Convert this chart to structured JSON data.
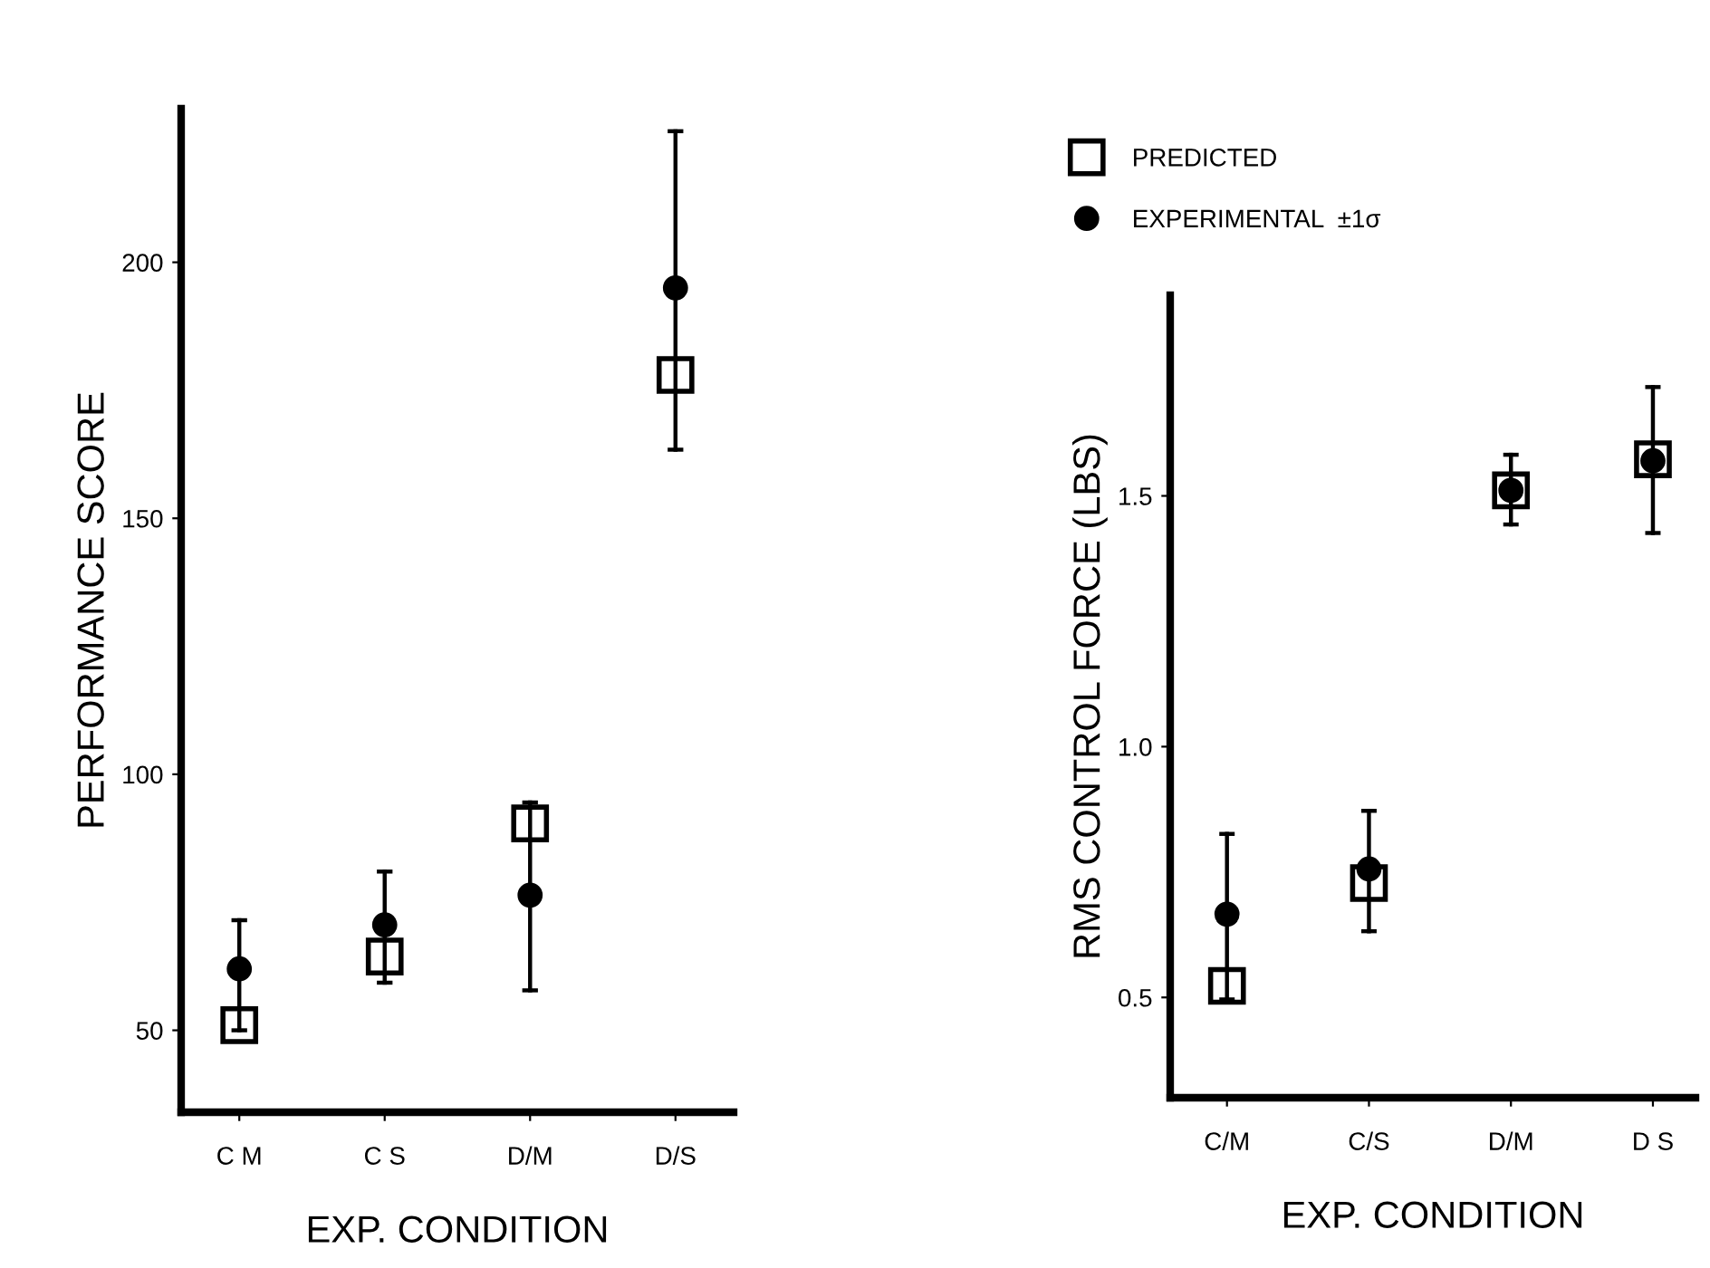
{
  "chart_data": [
    {
      "type": "scatter",
      "ylabel": "PERFORMANCE SCORE",
      "xlabel": "EXP. CONDITION",
      "categories": [
        "C M",
        "C S",
        "D/M",
        "D/S"
      ],
      "ylim": [
        34,
        230
      ],
      "yticks": [
        50,
        100,
        150,
        200
      ],
      "grid": false,
      "legend": false,
      "tick_labels": "xy",
      "series": [
        {
          "color": "#000000",
          "marker": "circle",
          "values": [
            62,
            70.6,
            76.4,
            195
          ],
          "errors": [
            [
              50,
              71.5
            ],
            [
              59.3,
              81
            ],
            [
              57.8,
              94.5
            ],
            [
              163.4,
              225.6
            ]
          ]
        },
        {
          "color": "#000000",
          "marker": "square",
          "values": [
            51,
            64.4,
            90.4,
            178
          ]
        }
      ]
    },
    {
      "type": "scatter",
      "ylabel": "RMS CONTROL FORCE (LBS)",
      "xlabel": "EXP. CONDITION",
      "categories": [
        "C/M",
        "C/S",
        "D/M",
        "D S"
      ],
      "ylim": [
        0.3,
        1.9
      ],
      "yticks": [
        {
          "value": 0.5,
          "label": "0.5"
        },
        {
          "value": 1.0,
          "label": "1.0"
        },
        {
          "value": 1.5,
          "label": "1.5"
        }
      ],
      "grid": false,
      "legend": "top left",
      "series": [
        {
          "name": "EXPERIMENTAL  ±1σ",
          "color": "#000000",
          "marker": "circle",
          "values": [
            0.666,
            0.756,
            1.511,
            1.57
          ],
          "errors": [
            [
              0.496,
              0.826
            ],
            [
              0.632,
              0.872
            ],
            [
              1.443,
              1.582
            ],
            [
              1.426,
              1.717
            ]
          ]
        },
        {
          "name": "PREDICTED",
          "color": "#000000",
          "marker": "square",
          "values": [
            0.523,
            0.728,
            1.511,
            1.573
          ]
        }
      ]
    }
  ]
}
